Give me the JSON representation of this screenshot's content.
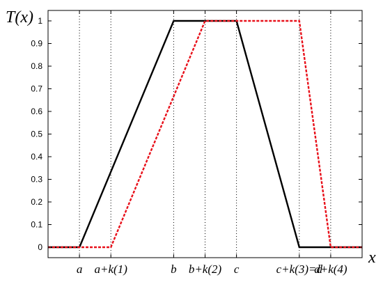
{
  "chart_data": {
    "type": "line",
    "ylabel": "T(x)",
    "xlabel": "x",
    "ylim": [
      0,
      1
    ],
    "yticks": [
      0,
      0.1,
      0.2,
      0.3,
      0.4,
      0.5,
      0.6,
      0.7,
      0.8,
      0.9,
      1
    ],
    "ytick_labels": [
      "0",
      "0.1",
      "0.2",
      "0.3",
      "0.4",
      "0.5",
      "0.6",
      "0.7",
      "0.8",
      "0.9",
      "1"
    ],
    "xlim": [
      0,
      10
    ],
    "xticks": [
      {
        "label": "a",
        "x": 1
      },
      {
        "label": "a+k(1)",
        "x": 2
      },
      {
        "label": "b",
        "x": 4
      },
      {
        "label": "b+k(2)",
        "x": 5
      },
      {
        "label": "c",
        "x": 6
      },
      {
        "label": "c+k(3)=d",
        "x": 8
      },
      {
        "label": "d+k(4)",
        "x": 9
      }
    ],
    "vertical_guides": [
      1,
      2,
      4,
      5,
      6,
      8,
      9
    ],
    "series": [
      {
        "color": "#000000",
        "style": "solid",
        "x": [
          0,
          1,
          4,
          6,
          8,
          10
        ],
        "y": [
          0,
          0,
          1,
          1,
          0,
          0
        ]
      },
      {
        "color": "#e8101a",
        "style": "dashed",
        "x": [
          0,
          2,
          5,
          8,
          9,
          10
        ],
        "y": [
          0,
          0,
          1,
          1,
          0,
          0
        ]
      }
    ]
  }
}
